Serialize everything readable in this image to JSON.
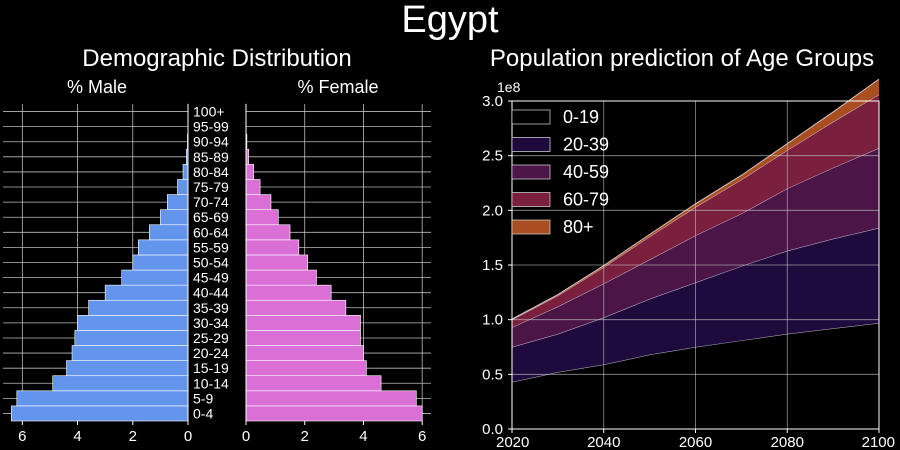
{
  "figure_title": "Egypt",
  "chart_data": [
    {
      "type": "bar",
      "orientation": "horizontal",
      "title": "Demographic Distribution",
      "male_label": "% Male",
      "female_label": "% Female",
      "categories": [
        "0-4",
        "5-9",
        "10-14",
        "15-19",
        "20-24",
        "25-29",
        "30-34",
        "35-39",
        "40-44",
        "45-49",
        "50-54",
        "55-59",
        "60-64",
        "65-69",
        "70-74",
        "75-79",
        "80-84",
        "85-89",
        "90-94",
        "95-99",
        "100+"
      ],
      "series": [
        {
          "name": "Male",
          "color": "#6495ed",
          "values": [
            6.4,
            6.2,
            4.9,
            4.4,
            4.2,
            4.1,
            4.0,
            3.6,
            3.0,
            2.4,
            2.0,
            1.8,
            1.4,
            1.0,
            0.75,
            0.38,
            0.18,
            0.06,
            0.02,
            0.005,
            0.001
          ]
        },
        {
          "name": "Female",
          "color": "#da70d6",
          "values": [
            6.0,
            5.8,
            4.6,
            4.1,
            4.0,
            3.9,
            3.9,
            3.4,
            2.9,
            2.4,
            2.1,
            1.8,
            1.5,
            1.1,
            0.85,
            0.48,
            0.26,
            0.09,
            0.03,
            0.008,
            0.002
          ]
        }
      ],
      "xlim_male": [
        6.7,
        0
      ],
      "xlim_female": [
        0,
        6.3
      ],
      "xticks": [
        "6",
        "4",
        "2",
        "0"
      ],
      "xticks_female": [
        "0",
        "2",
        "4",
        "6"
      ],
      "grid": true
    },
    {
      "type": "area",
      "stacked": true,
      "title": "Population prediction of Age Groups",
      "y_exponent_label": "1e8",
      "x": [
        2020,
        2030,
        2040,
        2050,
        2060,
        2070,
        2080,
        2090,
        2100
      ],
      "ylim": [
        0,
        300000000.0
      ],
      "xlim": [
        2020,
        2100
      ],
      "xticks": [
        "2020",
        "2040",
        "2060",
        "2080",
        "2100"
      ],
      "yticks": [
        "0.0",
        "0.5",
        "1.0",
        "1.5",
        "2.0",
        "2.5",
        "3.0"
      ],
      "legend_position": "upper-left",
      "series": [
        {
          "name": "0-19",
          "color": "#000000",
          "values": [
            0.43,
            0.52,
            0.59,
            0.68,
            0.75,
            0.81,
            0.87,
            0.92,
            0.97
          ]
        },
        {
          "name": "20-39",
          "color": "#1e0a3c",
          "values": [
            0.32,
            0.35,
            0.43,
            0.51,
            0.59,
            0.68,
            0.76,
            0.82,
            0.87
          ]
        },
        {
          "name": "40-59",
          "color": "#4b1548",
          "values": [
            0.18,
            0.25,
            0.31,
            0.36,
            0.43,
            0.48,
            0.57,
            0.65,
            0.73
          ]
        },
        {
          "name": "60-79",
          "color": "#7a1f3d",
          "values": [
            0.07,
            0.1,
            0.15,
            0.21,
            0.26,
            0.31,
            0.35,
            0.42,
            0.49
          ]
        },
        {
          "name": "80+",
          "color": "#a84e20",
          "values": [
            0.005,
            0.01,
            0.015,
            0.02,
            0.03,
            0.04,
            0.06,
            0.09,
            0.14
          ]
        }
      ]
    }
  ]
}
